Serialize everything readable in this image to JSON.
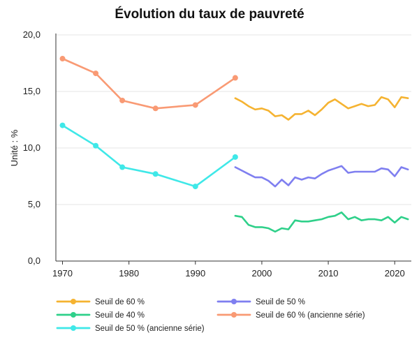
{
  "chart_data": {
    "type": "line",
    "title": "Évolution du taux de pauvreté",
    "xlabel": "",
    "ylabel": "Unité : %",
    "xlim": [
      1969,
      2022.5
    ],
    "ylim": [
      0,
      20
    ],
    "x_ticks": [
      1970,
      1980,
      1990,
      2000,
      2010,
      2020
    ],
    "y_ticks": [
      0,
      5,
      10,
      15,
      20
    ],
    "x_tick_labels": [
      "1970",
      "1980",
      "1990",
      "2000",
      "2010",
      "2020"
    ],
    "y_tick_labels": [
      "0,0",
      "5,0",
      "10,0",
      "15,0",
      "20,0"
    ],
    "grid": true,
    "legend_position": "bottom",
    "series": [
      {
        "name": "Seuil de 60 %",
        "color": "#f5b331",
        "markers": false,
        "x": [
          1996,
          1997,
          1998,
          1999,
          2000,
          2001,
          2002,
          2003,
          2004,
          2005,
          2006,
          2007,
          2008,
          2009,
          2010,
          2011,
          2012,
          2013,
          2014,
          2015,
          2016,
          2017,
          2018,
          2019,
          2020,
          2021,
          2022
        ],
        "y": [
          14.4,
          14.1,
          13.7,
          13.4,
          13.5,
          13.3,
          12.8,
          12.9,
          12.5,
          13.0,
          13.0,
          13.3,
          12.9,
          13.4,
          14.0,
          14.3,
          13.9,
          13.5,
          13.7,
          13.9,
          13.7,
          13.8,
          14.5,
          14.3,
          13.6,
          14.5,
          14.4
        ]
      },
      {
        "name": "Seuil de 50 %",
        "color": "#7f7ff0",
        "markers": false,
        "x": [
          1996,
          1997,
          1998,
          1999,
          2000,
          2001,
          2002,
          2003,
          2004,
          2005,
          2006,
          2007,
          2008,
          2009,
          2010,
          2011,
          2012,
          2013,
          2014,
          2015,
          2016,
          2017,
          2018,
          2019,
          2020,
          2021,
          2022
        ],
        "y": [
          8.3,
          8.0,
          7.7,
          7.4,
          7.4,
          7.1,
          6.6,
          7.2,
          6.7,
          7.4,
          7.2,
          7.4,
          7.3,
          7.7,
          8.0,
          8.2,
          8.4,
          7.8,
          7.9,
          7.9,
          7.9,
          7.9,
          8.2,
          8.1,
          7.5,
          8.3,
          8.1
        ]
      },
      {
        "name": "Seuil de 40 %",
        "color": "#2fd08a",
        "markers": false,
        "x": [
          1996,
          1997,
          1998,
          1999,
          2000,
          2001,
          2002,
          2003,
          2004,
          2005,
          2006,
          2007,
          2008,
          2009,
          2010,
          2011,
          2012,
          2013,
          2014,
          2015,
          2016,
          2017,
          2018,
          2019,
          2020,
          2021,
          2022
        ],
        "y": [
          4.0,
          3.9,
          3.2,
          3.0,
          3.0,
          2.9,
          2.6,
          2.9,
          2.8,
          3.6,
          3.5,
          3.5,
          3.6,
          3.7,
          3.9,
          4.0,
          4.3,
          3.7,
          3.9,
          3.6,
          3.7,
          3.7,
          3.6,
          3.9,
          3.4,
          3.9,
          3.7
        ]
      },
      {
        "name": "Seuil de 60 % (ancienne série)",
        "color": "#f99a74",
        "markers": true,
        "x": [
          1970,
          1975,
          1979,
          1984,
          1990,
          1996
        ],
        "y": [
          17.9,
          16.6,
          14.2,
          13.5,
          13.8,
          16.2
        ]
      },
      {
        "name": "Seuil de 50 % (ancienne série)",
        "color": "#3fe8e8",
        "markers": true,
        "x": [
          1970,
          1975,
          1979,
          1984,
          1990,
          1996
        ],
        "y": [
          12.0,
          10.2,
          8.3,
          7.7,
          6.6,
          9.2
        ]
      }
    ]
  }
}
